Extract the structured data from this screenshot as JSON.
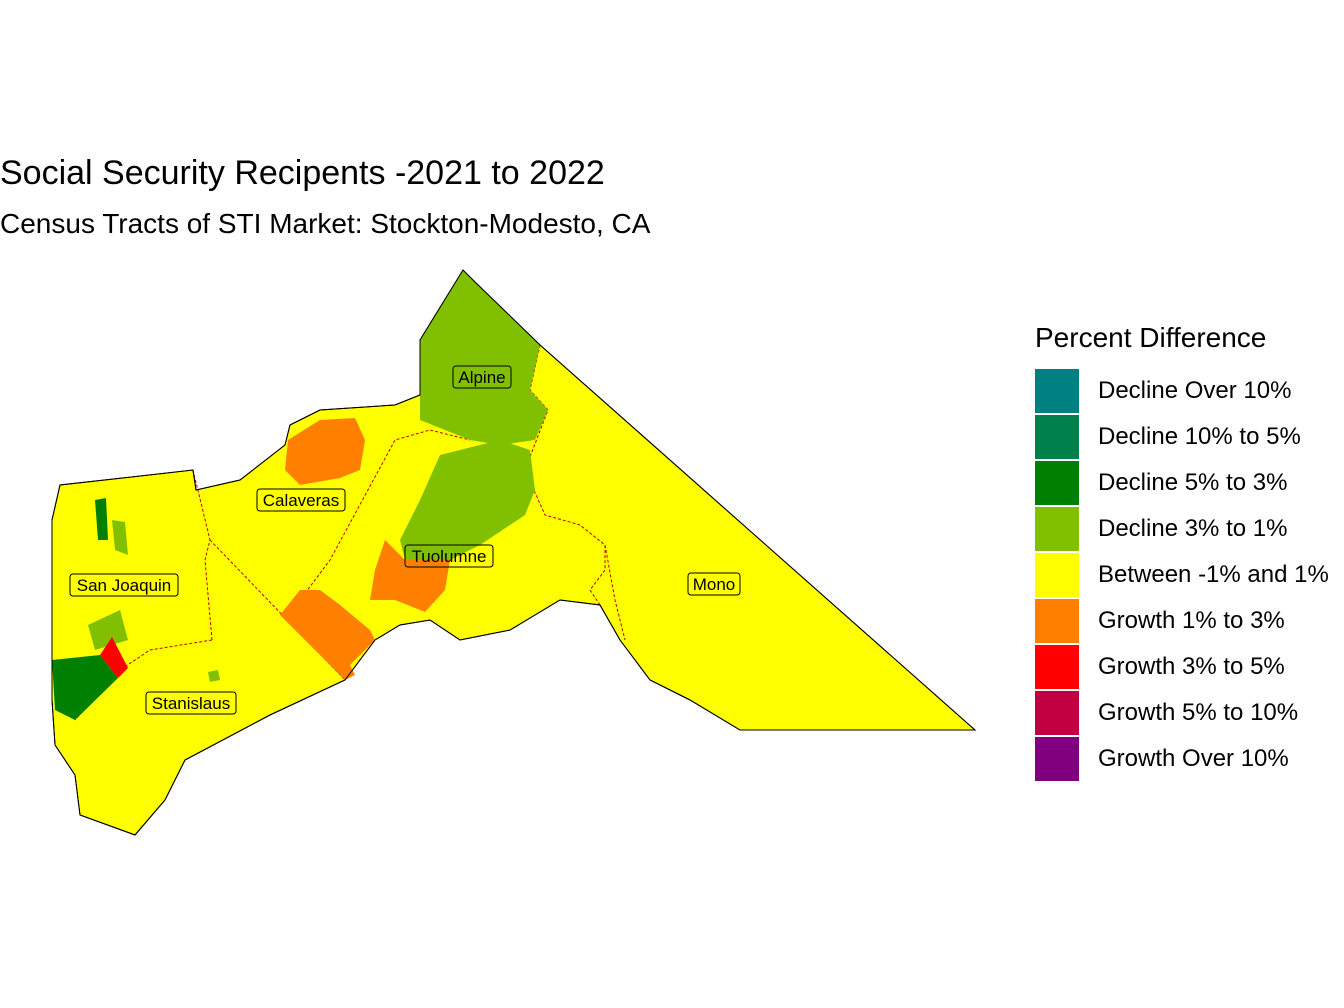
{
  "title": "Social Security Recipents -2021 to 2022",
  "subtitle": "Census Tracts of STI Market: Stockton-Modesto, CA",
  "legend": {
    "title": "Percent Difference",
    "items": [
      {
        "label": "Decline Over 10%",
        "color": "#008080"
      },
      {
        "label": "Decline 10% to 5%",
        "color": "#00804a"
      },
      {
        "label": "Decline 5% to 3%",
        "color": "#008000"
      },
      {
        "label": "Decline 3% to 1%",
        "color": "#80c000"
      },
      {
        "label": "Between -1% and 1%",
        "color": "#ffff00"
      },
      {
        "label": "Growth 1% to 3%",
        "color": "#ff8000"
      },
      {
        "label": "Growth 3% to 5%",
        "color": "#ff0000"
      },
      {
        "label": "Growth 5% to 10%",
        "color": "#c00040"
      },
      {
        "label": "Growth Over 10%",
        "color": "#800080"
      }
    ]
  },
  "counties": [
    {
      "name": "San Joaquin"
    },
    {
      "name": "Calaveras"
    },
    {
      "name": "Alpine"
    },
    {
      "name": "Tuolumne"
    },
    {
      "name": "Mono"
    },
    {
      "name": "Stanislaus"
    }
  ]
}
